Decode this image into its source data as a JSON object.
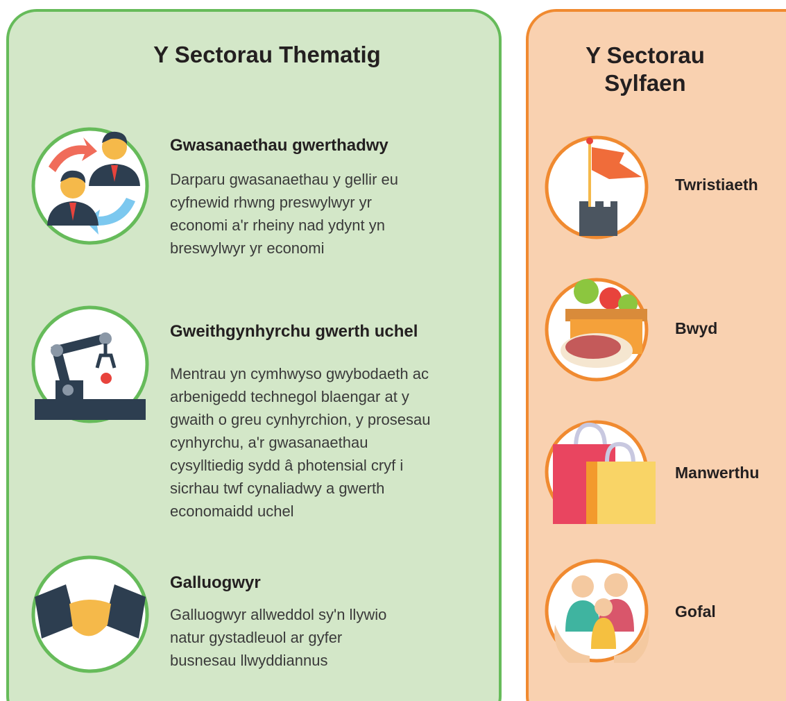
{
  "thematic": {
    "title": "Y Sectorau Thematig",
    "items": [
      {
        "heading": "Gwasanaethau gwerthadwy",
        "description": [
          "Darparu gwasanaethau y gellir eu",
          "cyfnewid rhwng preswylwyr yr",
          "economi a'r rheiny nad ydynt yn",
          "breswylwyr yr economi"
        ]
      },
      {
        "heading": "Gweithgynhyrchu gwerth uchel",
        "description": [
          "Mentrau yn cymhwyso gwybodaeth ac",
          "arbenigedd technegol blaengar at y",
          "gwaith o greu cynhyrchion, y prosesau",
          "cynhyrchu, a'r gwasanaethau",
          "cysylltiedig sydd â photensial cryf i",
          "sicrhau twf cynaliadwy a gwerth",
          "economaidd uchel"
        ]
      },
      {
        "heading": "Galluogwyr",
        "description": [
          "Galluogwyr allweddol sy'n llywio",
          "natur gystadleuol ar gyfer",
          "busnesau llwyddiannus"
        ]
      }
    ]
  },
  "foundational": {
    "title": [
      "Y Sectorau",
      "Sylfaen"
    ],
    "items": [
      "Twristiaeth",
      "Bwyd",
      "Manwerthu",
      "Gofal"
    ]
  }
}
